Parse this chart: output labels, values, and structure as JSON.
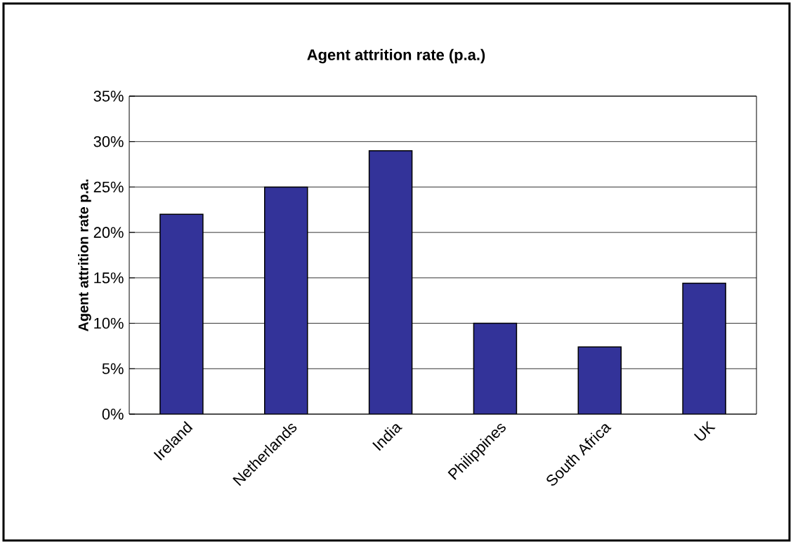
{
  "chart_data": {
    "type": "bar",
    "title": "Agent attrition rate (p.a.)",
    "ylabel": "Agent attrition rate p.a.",
    "categories": [
      "Ireland",
      "Netherlands",
      "India",
      "Philippines",
      "South Africa",
      "UK"
    ],
    "values": [
      22,
      25,
      29,
      10,
      7.4,
      14.4
    ],
    "color": "#333399",
    "ylim": [
      0,
      35
    ],
    "yticks": [
      {
        "value": 0,
        "label": "0%"
      },
      {
        "value": 5,
        "label": "5%"
      },
      {
        "value": 10,
        "label": "10%"
      },
      {
        "value": 15,
        "label": "15%"
      },
      {
        "value": 20,
        "label": "20%"
      },
      {
        "value": 25,
        "label": "25%"
      },
      {
        "value": 30,
        "label": "30%"
      },
      {
        "value": 35,
        "label": "35%"
      }
    ],
    "grid": "y"
  }
}
